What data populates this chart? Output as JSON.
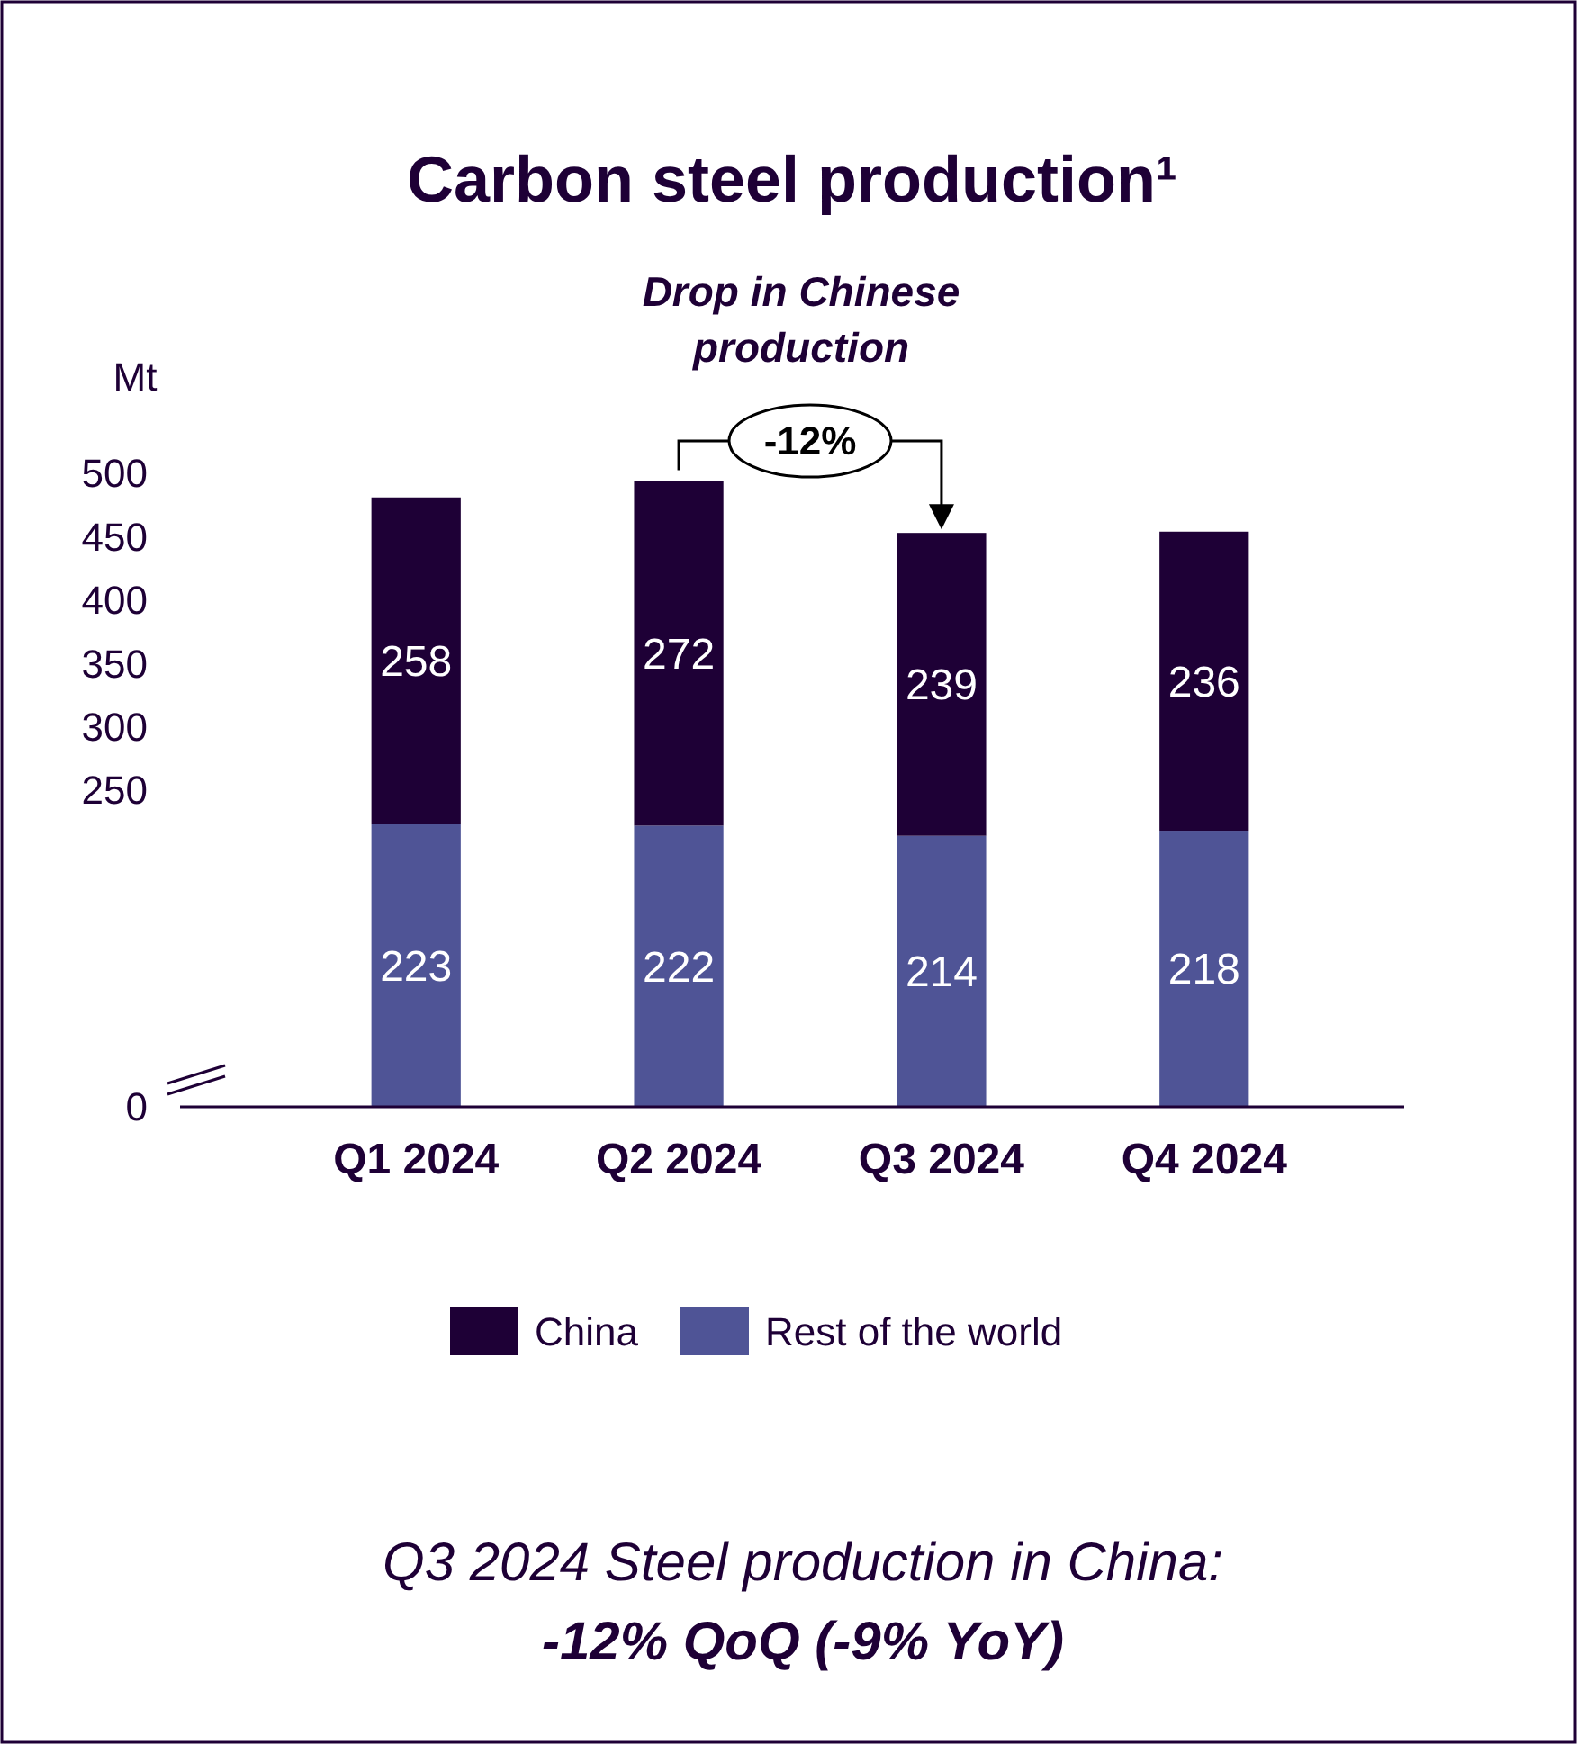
{
  "chart_data": {
    "type": "bar",
    "title": "Carbon steel production¹",
    "ylabel": "Mt",
    "categories": [
      "Q1 2024",
      "Q2 2024",
      "Q3 2024",
      "Q4 2024"
    ],
    "series": [
      {
        "name": "Rest of the world",
        "color": "#4f5496",
        "values": [
          223,
          222,
          214,
          218
        ]
      },
      {
        "name": "China",
        "color": "#1e0036",
        "values": [
          258,
          272,
          239,
          236
        ]
      }
    ],
    "stacked": true,
    "data_labels": true,
    "ylim": [
      0,
      500
    ],
    "yticks": [
      0,
      250,
      300,
      350,
      400,
      450,
      500
    ],
    "grid": false,
    "legend": "bottom",
    "annotations": [
      "Drop in Chinese production",
      "-12%",
      "Q3 2024 Steel production in China:",
      "-12% QoQ (-9% YoY)"
    ]
  }
}
